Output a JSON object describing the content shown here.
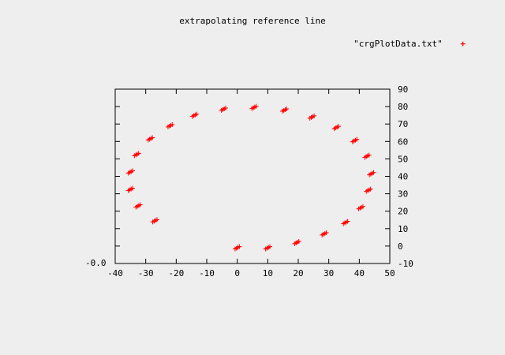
{
  "chart_data": {
    "type": "scatter",
    "title": "extrapolating reference line",
    "legend_position": "top-right",
    "grid": false,
    "xlim": [
      -40,
      50
    ],
    "ylim": [
      -10,
      90
    ],
    "x_ticks": [
      -40,
      -30,
      -20,
      -10,
      0,
      10,
      20,
      30,
      40,
      50
    ],
    "y_ticks": [
      -10,
      0,
      10,
      20,
      30,
      40,
      50,
      60,
      70,
      80,
      90
    ],
    "left_axis_label": "-0.0",
    "series": [
      {
        "name": "\"crgPlotData.txt\"",
        "color": "#ff0000",
        "marker": "+",
        "clusters": [
          {
            "x": 0,
            "y": -1
          },
          {
            "x": 10,
            "y": -1
          },
          {
            "x": 19.5,
            "y": 2
          },
          {
            "x": 28.5,
            "y": 7
          },
          {
            "x": 35.5,
            "y": 13.5
          },
          {
            "x": 40.5,
            "y": 22
          },
          {
            "x": 43,
            "y": 32
          },
          {
            "x": 44,
            "y": 41.5
          },
          {
            "x": 42.5,
            "y": 51.5
          },
          {
            "x": 38.5,
            "y": 60.5
          },
          {
            "x": 32.5,
            "y": 68
          },
          {
            "x": 24.5,
            "y": 74
          },
          {
            "x": 15.5,
            "y": 78
          },
          {
            "x": 5.5,
            "y": 79.5
          },
          {
            "x": -4.5,
            "y": 78.5
          },
          {
            "x": -14,
            "y": 75
          },
          {
            "x": -22,
            "y": 69
          },
          {
            "x": -28.5,
            "y": 61.5
          },
          {
            "x": -33,
            "y": 52.5
          },
          {
            "x": -35,
            "y": 42.5
          },
          {
            "x": -35,
            "y": 32.5
          },
          {
            "x": -32.5,
            "y": 23
          },
          {
            "x": -27,
            "y": 14.5
          }
        ]
      }
    ]
  }
}
